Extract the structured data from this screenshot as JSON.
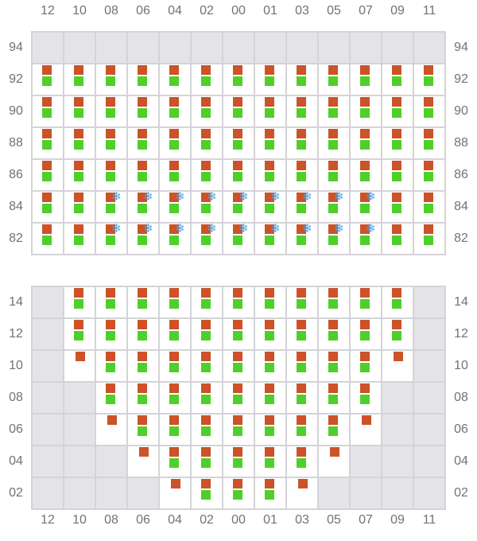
{
  "colors": {
    "red": "#cc5229",
    "green": "#4fcf2a",
    "snow": "#4a9ee8",
    "disabled": "#e4e4e7"
  },
  "columns": [
    "12",
    "10",
    "08",
    "06",
    "04",
    "02",
    "00",
    "01",
    "03",
    "05",
    "07",
    "09",
    "11"
  ],
  "legend_codes": {
    "x": "disabled",
    "rg": "red+green",
    "rgs": "red+green+snowflake-icon",
    "r": "red only",
    "": "empty"
  },
  "grids": [
    {
      "rows": [
        {
          "label": "94",
          "cells": [
            "x",
            "x",
            "x",
            "x",
            "x",
            "x",
            "x",
            "x",
            "x",
            "x",
            "x",
            "x",
            "x"
          ]
        },
        {
          "label": "92",
          "cells": [
            "rg",
            "rg",
            "rg",
            "rg",
            "rg",
            "rg",
            "rg",
            "rg",
            "rg",
            "rg",
            "rg",
            "rg",
            "rg"
          ]
        },
        {
          "label": "90",
          "cells": [
            "rg",
            "rg",
            "rg",
            "rg",
            "rg",
            "rg",
            "rg",
            "rg",
            "rg",
            "rg",
            "rg",
            "rg",
            "rg"
          ]
        },
        {
          "label": "88",
          "cells": [
            "rg",
            "rg",
            "rg",
            "rg",
            "rg",
            "rg",
            "rg",
            "rg",
            "rg",
            "rg",
            "rg",
            "rg",
            "rg"
          ]
        },
        {
          "label": "86",
          "cells": [
            "rg",
            "rg",
            "rg",
            "rg",
            "rg",
            "rg",
            "rg",
            "rg",
            "rg",
            "rg",
            "rg",
            "rg",
            "rg"
          ]
        },
        {
          "label": "84",
          "cells": [
            "rg",
            "rg",
            "rgs",
            "rgs",
            "rgs",
            "rgs",
            "rgs",
            "rgs",
            "rgs",
            "rgs",
            "rgs",
            "rg",
            "rg"
          ]
        },
        {
          "label": "82",
          "cells": [
            "rg",
            "rg",
            "rgs",
            "rgs",
            "rgs",
            "rgs",
            "rgs",
            "rgs",
            "rgs",
            "rgs",
            "rgs",
            "rg",
            "rg"
          ]
        }
      ]
    },
    {
      "rows": [
        {
          "label": "14",
          "cells": [
            "x",
            "rg",
            "rg",
            "rg",
            "rg",
            "rg",
            "rg",
            "rg",
            "rg",
            "rg",
            "rg",
            "rg",
            "x"
          ]
        },
        {
          "label": "12",
          "cells": [
            "x",
            "rg",
            "rg",
            "rg",
            "rg",
            "rg",
            "rg",
            "rg",
            "rg",
            "rg",
            "rg",
            "rg",
            "x"
          ]
        },
        {
          "label": "10",
          "cells": [
            "x",
            "r",
            "rg",
            "rg",
            "rg",
            "rg",
            "rg",
            "rg",
            "rg",
            "rg",
            "rg",
            "r",
            "x"
          ]
        },
        {
          "label": "08",
          "cells": [
            "x",
            "x",
            "rg",
            "rg",
            "rg",
            "rg",
            "rg",
            "rg",
            "rg",
            "rg",
            "rg",
            "x",
            "x"
          ]
        },
        {
          "label": "06",
          "cells": [
            "x",
            "x",
            "r",
            "rg",
            "rg",
            "rg",
            "rg",
            "rg",
            "rg",
            "rg",
            "r",
            "x",
            "x"
          ]
        },
        {
          "label": "04",
          "cells": [
            "x",
            "x",
            "x",
            "r",
            "rg",
            "rg",
            "rg",
            "rg",
            "rg",
            "r",
            "x",
            "x",
            "x"
          ]
        },
        {
          "label": "02",
          "cells": [
            "x",
            "x",
            "x",
            "x",
            "r",
            "rg",
            "rg",
            "rg",
            "r",
            "x",
            "x",
            "x",
            "x"
          ]
        }
      ]
    }
  ]
}
